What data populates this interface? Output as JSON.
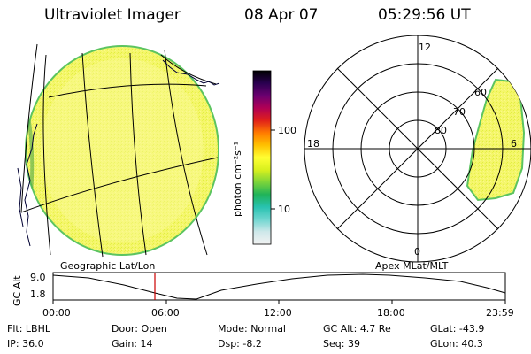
{
  "header": {
    "instrument": "Ultraviolet Imager",
    "date": "08 Apr 07",
    "time": "05:29:56 UT"
  },
  "colorbar": {
    "unit_label": "photon cm⁻²s⁻¹",
    "tick_100": "100",
    "tick_10": "10",
    "stops": [
      "#f2f2f2",
      "#cfe8ea",
      "#6fd6d0",
      "#28c2b0",
      "#1fb35a",
      "#7bd43a",
      "#d8f01e",
      "#ffff33",
      "#ffc000",
      "#ff7a00",
      "#e0201a",
      "#b00055",
      "#6a0070",
      "#2a0050",
      "#000000"
    ]
  },
  "polar": {
    "mlt_12": "12",
    "mlt_18": "18",
    "mlt_6": "6",
    "mlt_0": "0",
    "lat_60": "60",
    "lat_70": "70",
    "lat_80": "80"
  },
  "timeline": {
    "left_title": "Geographic Lat/Lon",
    "right_title": "Apex MLat/MLT",
    "y_axis_label": "GC Alt",
    "y_max": "9.0",
    "y_min": "1.8",
    "x_ticks": [
      "00:00",
      "06:00",
      "12:00",
      "18:00",
      "23:59"
    ],
    "current_marker_color": "#cc0000"
  },
  "footer": {
    "row1": [
      {
        "key": "Flt:",
        "val": "LBHL"
      },
      {
        "key": "Door:",
        "val": "Open"
      },
      {
        "key": "Mode:",
        "val": "Normal"
      },
      {
        "key": "GC Alt:",
        "val": "4.7 Re"
      },
      {
        "key": "GLat:",
        "val": "-43.9"
      }
    ],
    "row2": [
      {
        "key": "IP:",
        "val": "36.0"
      },
      {
        "key": "Gain:",
        "val": "14"
      },
      {
        "key": "Dsp:",
        "val": "-8.2"
      },
      {
        "key": "Seq:",
        "val": "39"
      },
      {
        "key": "GLon:",
        "val": "40.3"
      }
    ]
  }
}
